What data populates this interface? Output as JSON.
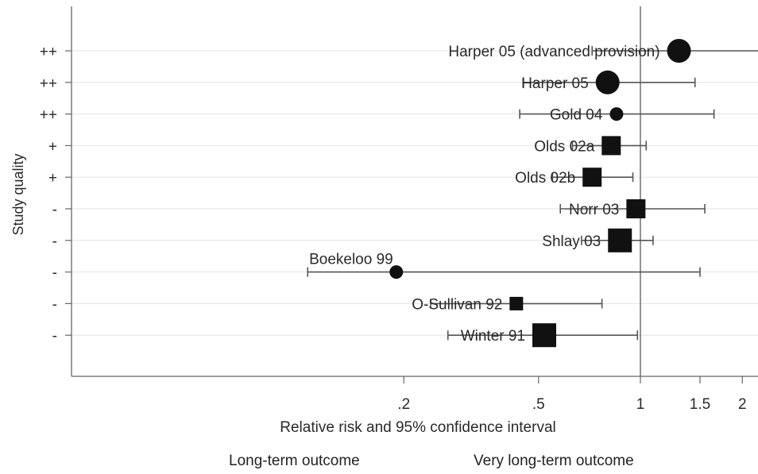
{
  "chart_data": {
    "type": "forest",
    "title": "",
    "xlabel": "Relative risk and 95% confidence interval",
    "ylabel": "Study quality",
    "x_scale": "log",
    "xlim": [
      0.1,
      2.3
    ],
    "x_ticks": [
      {
        "value": 0.2,
        "label": ".2"
      },
      {
        "value": 0.5,
        "label": ".5"
      },
      {
        "value": 1,
        "label": "1"
      },
      {
        "value": 1.5,
        "label": "1.5"
      },
      {
        "value": 2,
        "label": "2"
      }
    ],
    "reference_line": 1,
    "grid": true,
    "studies": [
      {
        "label": "Harper 05 (advanced provision)",
        "quality": "++",
        "rr": 1.3,
        "ci": [
          0.72,
          2.3
        ],
        "marker": "circle",
        "weight": 3
      },
      {
        "label": "Harper 05",
        "quality": "++",
        "rr": 0.8,
        "ci": [
          0.45,
          1.45
        ],
        "marker": "circle",
        "weight": 3
      },
      {
        "label": "Gold 04",
        "quality": "++",
        "rr": 0.85,
        "ci": [
          0.44,
          1.65
        ],
        "marker": "circle",
        "weight": 1
      },
      {
        "label": "Olds 02a",
        "quality": "+",
        "rr": 0.82,
        "ci": [
          0.63,
          1.04
        ],
        "marker": "square",
        "weight": 2
      },
      {
        "label": "Olds 02b",
        "quality": "+",
        "rr": 0.72,
        "ci": [
          0.55,
          0.95
        ],
        "marker": "square",
        "weight": 2
      },
      {
        "label": "Norr 03",
        "quality": "-",
        "rr": 0.97,
        "ci": [
          0.58,
          1.55
        ],
        "marker": "square",
        "weight": 2
      },
      {
        "label": "Shlay 03",
        "quality": "-",
        "rr": 0.87,
        "ci": [
          0.67,
          1.09
        ],
        "marker": "square",
        "weight": 3
      },
      {
        "label": "Boekeloo 99",
        "quality": "-",
        "rr": 0.19,
        "ci": [
          0.104,
          1.5
        ],
        "marker": "circle",
        "weight": 1
      },
      {
        "label": "O-Sullivan 92",
        "quality": "-",
        "rr": 0.43,
        "ci": [
          0.24,
          0.77
        ],
        "marker": "square",
        "weight": 1
      },
      {
        "label": "Winter 91",
        "quality": "-",
        "rr": 0.52,
        "ci": [
          0.27,
          0.98
        ],
        "marker": "square",
        "weight": 3
      }
    ],
    "legend": {
      "placement": "bottom",
      "items": [
        "Long-term outcome",
        "Very long-term outcome"
      ]
    }
  }
}
